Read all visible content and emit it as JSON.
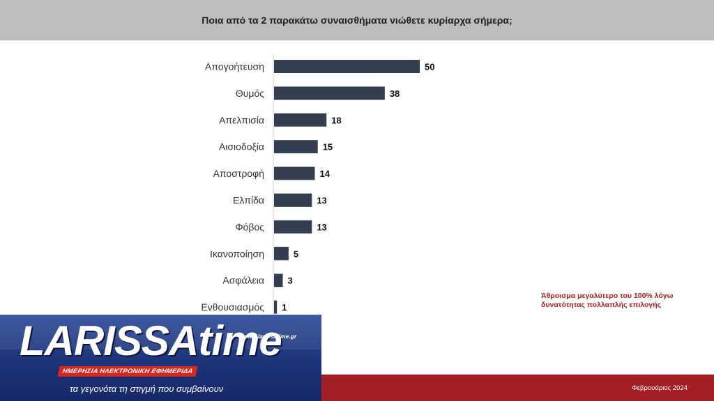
{
  "header": {
    "title": "Ποια από τα 2 παρακάτω συναισθήματα νιώθετε κυρίαρχα σήμερα;"
  },
  "chart_data": {
    "type": "bar",
    "orientation": "horizontal",
    "title": "Ποια από τα 2 παρακάτω συναισθήματα νιώθετε κυρίαρχα σήμερα;",
    "categories": [
      "Απογοήτευση",
      "Θυμός",
      "Απελπισία",
      "Αισιοδοξία",
      "Αποστροφή",
      "Ελπίδα",
      "Φόβος",
      "Ικανοποίηση",
      "Ασφάλεια",
      "Ενθουσιασμός"
    ],
    "values": [
      50,
      38,
      18,
      15,
      14,
      13,
      13,
      5,
      3,
      1
    ],
    "bar_color": "#333f50",
    "grid": false
  },
  "note": "Άθροισμα μεγαλύτερο του 100% λόγω δυνατότητας πολλαπλής επιλογής",
  "footer": {
    "date": "Φεβρουάριος 2024",
    "color": "#a31f24"
  },
  "logo": {
    "brand": "LARISSAtime",
    "url": "www.larissatime.gr",
    "tagline": "ΗΜΕΡΗΣΙΑ ΗΛΕΚΤΡΟΝΙΚΗ ΕΦΗΜΕΡΙΔΑ",
    "slogan": "τα γεγονότα τη στιγμή που συμβαίνουν"
  }
}
